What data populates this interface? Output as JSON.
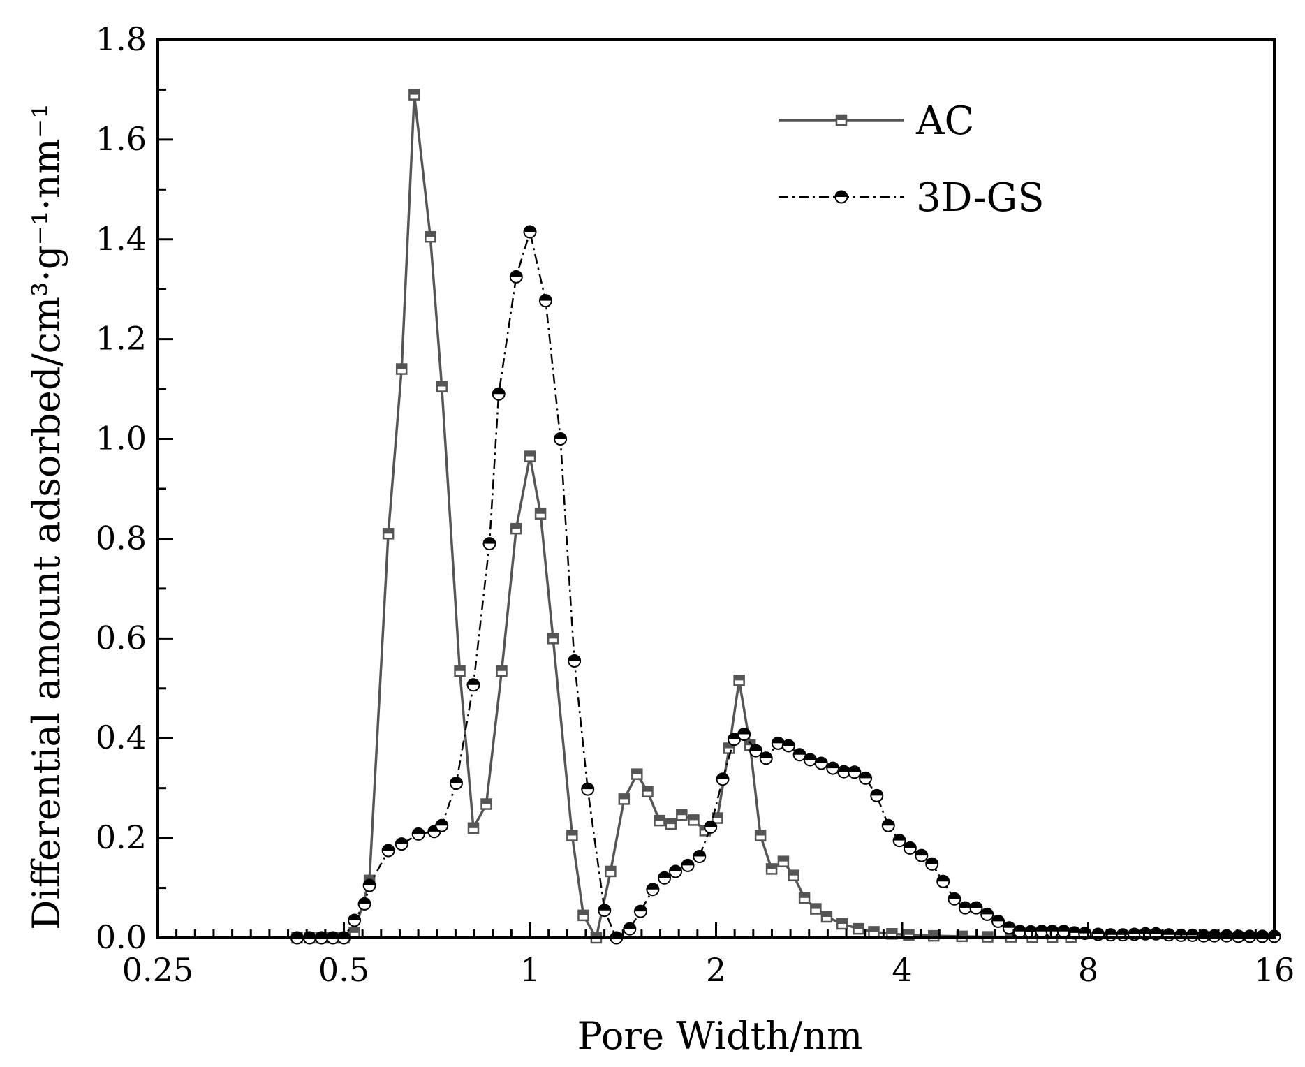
{
  "chart_data": {
    "type": "line",
    "xlabel": "Pore Width/nm",
    "ylabel": "Differential amount adsorbed/cm³·g⁻¹·nm⁻¹",
    "x_scale": "log2",
    "xlim": [
      0.25,
      16
    ],
    "ylim": [
      0,
      1.8
    ],
    "x_ticks": [
      "0.25",
      "0.5",
      "1",
      "2",
      "4",
      "8",
      "16"
    ],
    "y_ticks": [
      "0.0",
      "0.2",
      "0.4",
      "0.6",
      "0.8",
      "1.0",
      "1.2",
      "1.4",
      "1.6",
      "1.8"
    ],
    "legend_position": "top-right",
    "grid": false,
    "series": [
      {
        "name": "AC",
        "color": "#555555",
        "marker": "square",
        "line_style": "solid",
        "points": [
          [
            0.42,
            0.0
          ],
          [
            0.44,
            0.0
          ],
          [
            0.46,
            0.0
          ],
          [
            0.48,
            0.0
          ],
          [
            0.5,
            0.0
          ],
          [
            0.52,
            0.01
          ],
          [
            0.55,
            0.115
          ],
          [
            0.59,
            0.81
          ],
          [
            0.62,
            1.14
          ],
          [
            0.65,
            1.69
          ],
          [
            0.69,
            1.405
          ],
          [
            0.72,
            1.105
          ],
          [
            0.77,
            0.535
          ],
          [
            0.81,
            0.22
          ],
          [
            0.85,
            0.268
          ],
          [
            0.9,
            0.535
          ],
          [
            0.95,
            0.82
          ],
          [
            1.0,
            0.965
          ],
          [
            1.04,
            0.85
          ],
          [
            1.09,
            0.6
          ],
          [
            1.17,
            0.205
          ],
          [
            1.22,
            0.045
          ],
          [
            1.28,
            0.0
          ],
          [
            1.35,
            0.133
          ],
          [
            1.42,
            0.278
          ],
          [
            1.49,
            0.328
          ],
          [
            1.55,
            0.293
          ],
          [
            1.62,
            0.235
          ],
          [
            1.69,
            0.228
          ],
          [
            1.76,
            0.246
          ],
          [
            1.84,
            0.236
          ],
          [
            1.92,
            0.215
          ],
          [
            2.01,
            0.24
          ],
          [
            2.1,
            0.38
          ],
          [
            2.18,
            0.516
          ],
          [
            2.27,
            0.386
          ],
          [
            2.36,
            0.205
          ],
          [
            2.46,
            0.138
          ],
          [
            2.57,
            0.153
          ],
          [
            2.67,
            0.125
          ],
          [
            2.78,
            0.08
          ],
          [
            2.9,
            0.058
          ],
          [
            3.02,
            0.042
          ],
          [
            3.2,
            0.028
          ],
          [
            3.4,
            0.018
          ],
          [
            3.6,
            0.012
          ],
          [
            3.85,
            0.008
          ],
          [
            4.1,
            0.006
          ],
          [
            4.5,
            0.004
          ],
          [
            5.0,
            0.003
          ],
          [
            5.5,
            0.002
          ],
          [
            6.0,
            0.002
          ],
          [
            6.5,
            0.001
          ],
          [
            7.0,
            0.001
          ],
          [
            7.5,
            0.001
          ]
        ]
      },
      {
        "name": "3D-GS",
        "color": "#000000",
        "marker": "half-filled-circle",
        "line_style": "dash-dot",
        "points": [
          [
            0.42,
            0.0
          ],
          [
            0.44,
            0.0
          ],
          [
            0.46,
            0.0
          ],
          [
            0.48,
            0.0
          ],
          [
            0.5,
            0.0
          ],
          [
            0.52,
            0.035
          ],
          [
            0.54,
            0.068
          ],
          [
            0.55,
            0.105
          ],
          [
            0.59,
            0.175
          ],
          [
            0.62,
            0.188
          ],
          [
            0.66,
            0.208
          ],
          [
            0.7,
            0.213
          ],
          [
            0.72,
            0.225
          ],
          [
            0.76,
            0.31
          ],
          [
            0.81,
            0.507
          ],
          [
            0.86,
            0.79
          ],
          [
            0.89,
            1.09
          ],
          [
            0.95,
            1.325
          ],
          [
            1.0,
            1.415
          ],
          [
            1.06,
            1.277
          ],
          [
            1.12,
            1.0
          ],
          [
            1.18,
            0.555
          ],
          [
            1.24,
            0.298
          ],
          [
            1.32,
            0.055
          ],
          [
            1.38,
            0.0
          ],
          [
            1.45,
            0.018
          ],
          [
            1.51,
            0.053
          ],
          [
            1.58,
            0.097
          ],
          [
            1.65,
            0.12
          ],
          [
            1.72,
            0.133
          ],
          [
            1.8,
            0.145
          ],
          [
            1.88,
            0.163
          ],
          [
            1.96,
            0.222
          ],
          [
            2.05,
            0.318
          ],
          [
            2.14,
            0.398
          ],
          [
            2.22,
            0.408
          ],
          [
            2.32,
            0.375
          ],
          [
            2.41,
            0.36
          ],
          [
            2.52,
            0.39
          ],
          [
            2.62,
            0.385
          ],
          [
            2.73,
            0.367
          ],
          [
            2.84,
            0.357
          ],
          [
            2.96,
            0.35
          ],
          [
            3.09,
            0.34
          ],
          [
            3.22,
            0.333
          ],
          [
            3.35,
            0.332
          ],
          [
            3.49,
            0.32
          ],
          [
            3.64,
            0.285
          ],
          [
            3.8,
            0.225
          ],
          [
            3.96,
            0.195
          ],
          [
            4.12,
            0.18
          ],
          [
            4.3,
            0.165
          ],
          [
            4.47,
            0.148
          ],
          [
            4.66,
            0.113
          ],
          [
            4.86,
            0.078
          ],
          [
            5.06,
            0.06
          ],
          [
            5.27,
            0.06
          ],
          [
            5.49,
            0.047
          ],
          [
            5.72,
            0.033
          ],
          [
            5.96,
            0.02
          ],
          [
            6.2,
            0.013
          ],
          [
            6.46,
            0.012
          ],
          [
            6.73,
            0.013
          ],
          [
            7.0,
            0.013
          ],
          [
            7.3,
            0.013
          ],
          [
            7.6,
            0.01
          ],
          [
            7.9,
            0.009
          ],
          [
            8.3,
            0.007
          ],
          [
            8.7,
            0.006
          ],
          [
            9.1,
            0.006
          ],
          [
            9.5,
            0.007
          ],
          [
            9.9,
            0.008
          ],
          [
            10.3,
            0.008
          ],
          [
            10.8,
            0.006
          ],
          [
            11.3,
            0.005
          ],
          [
            11.8,
            0.005
          ],
          [
            12.3,
            0.004
          ],
          [
            12.8,
            0.004
          ],
          [
            13.4,
            0.004
          ],
          [
            14.0,
            0.003
          ],
          [
            14.6,
            0.003
          ],
          [
            15.3,
            0.003
          ],
          [
            16.0,
            0.003
          ]
        ]
      }
    ]
  }
}
